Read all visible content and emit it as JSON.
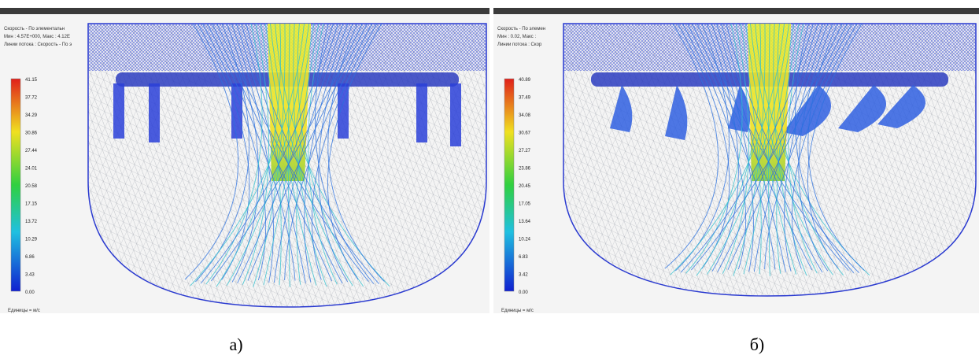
{
  "panels": [
    {
      "header": [
        "Скорость - По элементальн",
        "Мин : 4.57E+000, Макс : 4.12E",
        "Линии потока : Скорость - По э"
      ],
      "scale_labels": [
        "41.15",
        "37.72",
        "34.29",
        "30.86",
        "27.44",
        "24.01",
        "20.58",
        "17.15",
        "13.72",
        "10.29",
        "6.86",
        "3.43",
        "0.00"
      ],
      "units": "Единицы = м/с",
      "caption": "а)"
    },
    {
      "header": [
        "Скорость - По элемен",
        "Мин : 0.02, Макс :",
        "Линии потока : Скор"
      ],
      "scale_labels": [
        "40.89",
        "37.49",
        "34.08",
        "30.67",
        "27.27",
        "23.86",
        "20.45",
        "17.05",
        "13.64",
        "10.24",
        "6.83",
        "3.42",
        "0.00"
      ],
      "units": "Единицы = м/с",
      "caption": "б)"
    }
  ]
}
